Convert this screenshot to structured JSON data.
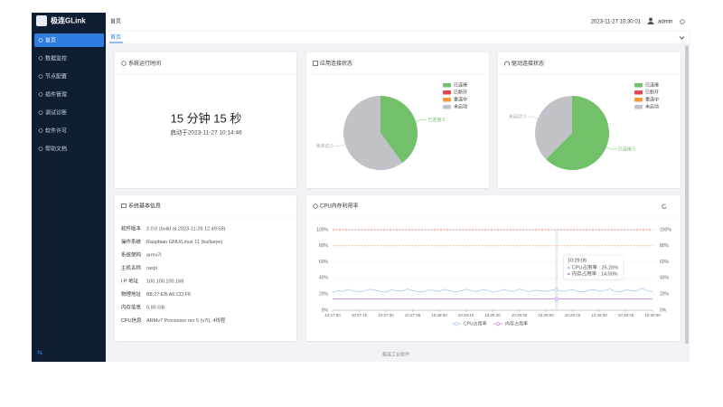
{
  "sidebar": {
    "brand": "极连GLink",
    "menu": [
      "首页",
      "数据监控",
      "节点配置",
      "插件管理",
      "调试诊断",
      "软件许可",
      "帮助文档"
    ]
  },
  "header": {
    "breadcrumb": "首页",
    "datetime": "2023-11-27 10:30:01",
    "user": "admin"
  },
  "tabs": [
    "首页"
  ],
  "uptime": {
    "title": "系统运行时间",
    "value": "15 分钟 15 秒",
    "started": "启动于2023-11-27 10:14:46"
  },
  "system_info": {
    "title": "系统基本信息",
    "rows": [
      [
        "软件版本",
        "2.0.0 (build at 2023-11-26 12:49:58)"
      ],
      [
        "操作系统",
        "Raspbian GNU/Linux 11 (bullseye)"
      ],
      [
        "系统架构",
        "armv7l"
      ],
      [
        "主机名称",
        "raspi"
      ],
      [
        "I P 地址",
        "100.100.100.168"
      ],
      [
        "物理地址",
        "B8:27:EB:A6:CD:F6"
      ],
      [
        "内存信息",
        "0.90 GB"
      ],
      [
        "CPU信息",
        "ARMv7 Processor rev 5 (v7l), 4线程"
      ]
    ]
  },
  "footer": "极连工业软件",
  "chart_data": [
    {
      "type": "pie",
      "title": "应用连接状态",
      "categories": [
        "已连接",
        "已断开",
        "重连中",
        "未启动"
      ],
      "values": [
        2,
        0,
        0,
        3
      ],
      "value_labels": [
        "已连接:2",
        null,
        null,
        "未启动:3"
      ],
      "colors": [
        "#73c06b",
        "#e0474c",
        "#f59a3a",
        "#c0c2c8"
      ]
    },
    {
      "type": "pie",
      "title": "驱动连接状态",
      "categories": [
        "已连接",
        "已断开",
        "重连中",
        "未启动"
      ],
      "values": [
        5,
        0,
        0,
        3
      ],
      "value_labels": [
        "已连接:5",
        null,
        null,
        "未启动:3"
      ],
      "colors": [
        "#73c06b",
        "#e0474c",
        "#f59a3a",
        "#c0c2c8"
      ]
    },
    {
      "type": "line",
      "title": "CPU内存利用率",
      "categories": [
        "10:27:00",
        "10:27:03",
        "10:27:06",
        "10:27:09",
        "10:27:12",
        "10:27:15",
        "10:27:18",
        "10:27:21",
        "10:27:24",
        "10:27:27",
        "10:27:30",
        "10:27:33",
        "10:27:36",
        "10:27:39",
        "10:27:42",
        "10:27:45",
        "10:27:48",
        "10:27:51",
        "10:27:54",
        "10:27:57",
        "10:28:00",
        "10:28:03",
        "10:28:06",
        "10:28:09",
        "10:28:12",
        "10:28:15",
        "10:28:18",
        "10:28:21",
        "10:28:24",
        "10:28:27",
        "10:28:30",
        "10:28:33",
        "10:28:36",
        "10:28:39",
        "10:28:42",
        "10:28:45",
        "10:28:48",
        "10:28:51",
        "10:28:54",
        "10:28:57",
        "10:29:00",
        "10:29:03",
        "10:29:06",
        "10:29:09",
        "10:29:12",
        "10:29:15",
        "10:29:18",
        "10:29:21",
        "10:29:24",
        "10:29:27",
        "10:29:30",
        "10:29:33",
        "10:29:36",
        "10:29:39",
        "10:29:42",
        "10:29:45",
        "10:29:48",
        "10:29:51",
        "10:29:54",
        "10:29:57",
        "10:30:00"
      ],
      "xticks": [
        "10:27:00",
        "10:27:15",
        "10:27:30",
        "10:27:45",
        "10:28:00",
        "10:28:15",
        "10:28:30",
        "10:28:45",
        "10:29:00",
        "10:29:15",
        "10:29:30",
        "10:29:45",
        "10:30:00"
      ],
      "series": [
        {
          "name": "CPU占用率",
          "color": "#a9c8f2",
          "values": [
            22.1,
            24.3,
            23.5,
            25.8,
            24.0,
            22.9,
            23.7,
            26.1,
            24.8,
            23.2,
            22.6,
            25.4,
            24.1,
            23.9,
            26.3,
            24.5,
            23.0,
            22.8,
            25.1,
            24.6,
            23.4,
            25.9,
            24.2,
            22.7,
            23.8,
            26.0,
            24.4,
            23.1,
            25.3,
            24.9,
            22.5,
            23.6,
            25.7,
            24.3,
            23.3,
            26.2,
            24.7,
            22.9,
            25.0,
            24.1,
            23.5,
            24.8,
            25.26,
            23.7,
            24.0,
            25.6,
            23.2,
            22.8,
            24.9,
            25.5,
            23.9,
            24.4,
            26.4,
            23.6,
            22.7,
            25.2,
            24.5,
            23.8,
            27.3,
            24.1,
            23.0
          ]
        },
        {
          "name": "内存占用率",
          "color": "#c98be6",
          "values": [
            14,
            14,
            14,
            14,
            14,
            14,
            14,
            14,
            14,
            14,
            14,
            14,
            14,
            14,
            14,
            14,
            14,
            14,
            14,
            14,
            14,
            14,
            14,
            14,
            14,
            14,
            14,
            14,
            14,
            14,
            14,
            14,
            14,
            14,
            14,
            14,
            14,
            14,
            14,
            14,
            14,
            14,
            14,
            14,
            14,
            14,
            14,
            14,
            14,
            14,
            14,
            14,
            14,
            14,
            14,
            14,
            14,
            14,
            14,
            14,
            14
          ],
          "axis": "y2"
        }
      ],
      "ylim": [
        0,
        100
      ],
      "yticks": [
        {
          "value": 0,
          "label": "0%"
        },
        {
          "value": 20,
          "label": "20%"
        },
        {
          "value": 40,
          "label": "40%"
        },
        {
          "value": 60,
          "label": "60%"
        },
        {
          "value": 80,
          "label": "80%"
        },
        {
          "value": 100,
          "label": "100%"
        }
      ],
      "y2lim": [
        0,
        100
      ],
      "y2ticks": [
        {
          "value": 0,
          "label": "0%"
        },
        {
          "value": 20,
          "label": "20%"
        },
        {
          "value": 40,
          "label": "40%"
        },
        {
          "value": 60,
          "label": "60%"
        },
        {
          "value": 80,
          "label": "80%"
        },
        {
          "value": 100,
          "label": "100%"
        }
      ],
      "grid": true,
      "mark_lines": [
        {
          "value": 100,
          "color": "#e8595a"
        },
        {
          "value": 80,
          "color": "#f0a35c"
        }
      ],
      "tooltip": {
        "title": "10:29:06",
        "lines": [
          "CPU占用率 : 25.26%",
          "内存占用率 : 14.00%"
        ]
      }
    }
  ]
}
